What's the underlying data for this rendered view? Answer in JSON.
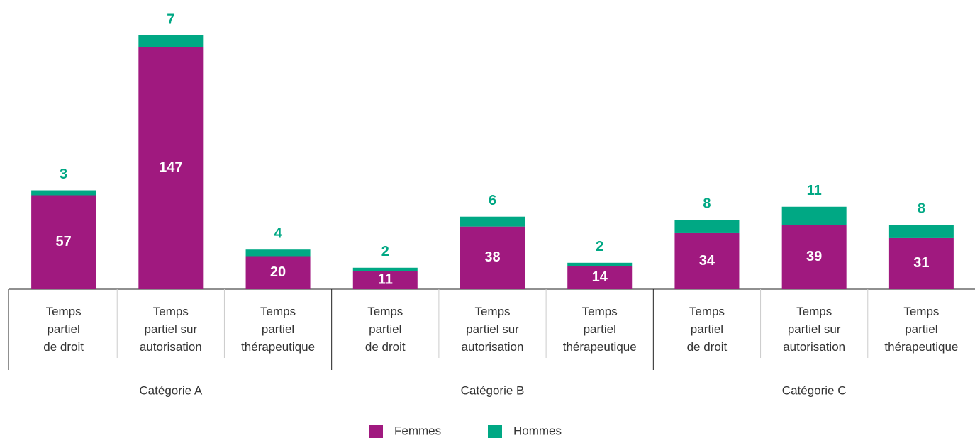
{
  "chart_data": {
    "type": "bar",
    "stacked": true,
    "categories": [
      "Temps\npartiel\nde droit",
      "Temps\npartiel sur\nautorisation",
      "Temps\npartiel\nthérapeutique",
      "Temps\npartiel\nde droit",
      "Temps\npartiel sur\nautorisation",
      "Temps\npartiel\nthérapeutique",
      "Temps\npartiel\nde droit",
      "Temps\npartiel sur\nautorisation",
      "Temps\npartiel\nthérapeutique"
    ],
    "groups": [
      "Catégorie A",
      "Catégorie B",
      "Catégorie C"
    ],
    "series": [
      {
        "name": "Femmes",
        "color": "#a0197f",
        "values": [
          57,
          147,
          20,
          11,
          38,
          14,
          34,
          39,
          31
        ]
      },
      {
        "name": "Hommes",
        "color": "#00a884",
        "values": [
          3,
          7,
          4,
          2,
          6,
          2,
          8,
          11,
          8
        ]
      }
    ],
    "ylim": [
      0,
      154
    ],
    "legend": "bottom"
  }
}
